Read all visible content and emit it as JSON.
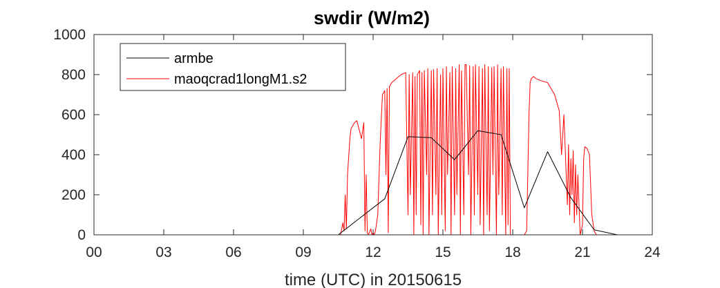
{
  "chart_data": {
    "type": "line",
    "title": "swdir  (W/m2)",
    "xlabel": "time (UTC) in 20150615",
    "ylabel": "",
    "xlim": [
      0,
      24
    ],
    "ylim": [
      0,
      1000
    ],
    "xticks": [
      0,
      3,
      6,
      9,
      12,
      15,
      18,
      21,
      24
    ],
    "xtick_labels": [
      "00",
      "03",
      "06",
      "09",
      "12",
      "15",
      "18",
      "21",
      "24"
    ],
    "yticks": [
      0,
      200,
      400,
      600,
      800,
      1000
    ],
    "ytick_labels": [
      "0",
      "200",
      "400",
      "600",
      "800",
      "1000"
    ],
    "legend_position": "top-left",
    "series": [
      {
        "name": "armbe",
        "color": "#000000",
        "x": [
          0,
          10.5,
          11.5,
          12.5,
          13.5,
          14.5,
          15.5,
          16.5,
          17.5,
          18.5,
          19.5,
          20.5,
          21.5,
          22.5,
          24
        ],
        "y": [
          0,
          0,
          90,
          180,
          490,
          485,
          375,
          520,
          500,
          135,
          415,
          185,
          25,
          0,
          0
        ]
      },
      {
        "name": "maoqcrad1longM1.s2",
        "color": "#ff0000",
        "x": [
          0,
          10.6,
          10.7,
          10.75,
          10.8,
          10.85,
          10.9,
          11.0,
          11.05,
          11.1,
          11.2,
          11.3,
          11.5,
          11.6,
          11.65,
          11.7,
          11.75,
          11.8,
          11.9,
          11.95,
          12.0,
          12.05,
          12.1,
          12.2,
          12.3,
          12.4,
          12.5,
          12.55,
          12.6,
          12.65,
          12.7,
          12.8,
          13.0,
          13.2,
          13.4,
          13.5,
          13.55,
          13.6,
          13.7,
          13.75,
          13.8,
          13.85,
          13.9,
          14.0,
          14.05,
          14.1,
          14.15,
          14.2,
          14.3,
          14.35,
          14.4,
          14.5,
          14.55,
          14.6,
          14.7,
          14.75,
          14.8,
          14.9,
          14.95,
          15.0,
          15.1,
          15.15,
          15.2,
          15.3,
          15.35,
          15.4,
          15.5,
          15.55,
          15.6,
          15.7,
          15.75,
          15.8,
          15.9,
          15.95,
          16.0,
          16.1,
          16.15,
          16.2,
          16.3,
          16.35,
          16.4,
          16.5,
          16.55,
          16.6,
          16.7,
          16.75,
          16.8,
          16.9,
          16.95,
          17.0,
          17.1,
          17.15,
          17.2,
          17.3,
          17.35,
          17.4,
          17.5,
          17.55,
          17.6,
          17.7,
          17.75,
          17.8,
          17.85,
          17.9,
          18.0,
          18.3,
          18.5,
          18.6,
          18.7,
          18.75,
          18.8,
          18.9,
          19.0,
          19.2,
          19.5,
          19.8,
          20.0,
          20.1,
          20.2,
          20.3,
          20.35,
          20.4,
          20.45,
          20.5,
          20.55,
          20.6,
          20.65,
          20.7,
          20.75,
          20.8,
          20.85,
          20.9,
          21.0,
          21.05,
          21.1,
          21.2,
          21.3,
          21.35,
          21.4,
          21.5,
          21.6,
          24
        ],
        "y": [
          0,
          0,
          60,
          20,
          200,
          30,
          300,
          480,
          530,
          540,
          560,
          570,
          480,
          560,
          20,
          300,
          10,
          0,
          30,
          0,
          10,
          0,
          20,
          100,
          450,
          700,
          720,
          300,
          730,
          10,
          740,
          760,
          780,
          800,
          810,
          100,
          800,
          200,
          810,
          0,
          790,
          100,
          800,
          820,
          50,
          810,
          0,
          820,
          300,
          830,
          0,
          820,
          100,
          825,
          200,
          830,
          0,
          800,
          100,
          830,
          20,
          840,
          300,
          810,
          0,
          840,
          100,
          830,
          200,
          850,
          0,
          820,
          100,
          850,
          850,
          300,
          845,
          0,
          840,
          100,
          850,
          200,
          840,
          50,
          830,
          0,
          850,
          100,
          840,
          20,
          835,
          300,
          840,
          0,
          850,
          200,
          830,
          100,
          840,
          0,
          830,
          50,
          830,
          0,
          0,
          0,
          0,
          20,
          600,
          760,
          780,
          790,
          780,
          770,
          760,
          700,
          620,
          400,
          600,
          300,
          150,
          450,
          100,
          380,
          200,
          420,
          60,
          350,
          100,
          300,
          150,
          0,
          50,
          380,
          440,
          430,
          400,
          250,
          100,
          20,
          0,
          0
        ]
      }
    ]
  }
}
